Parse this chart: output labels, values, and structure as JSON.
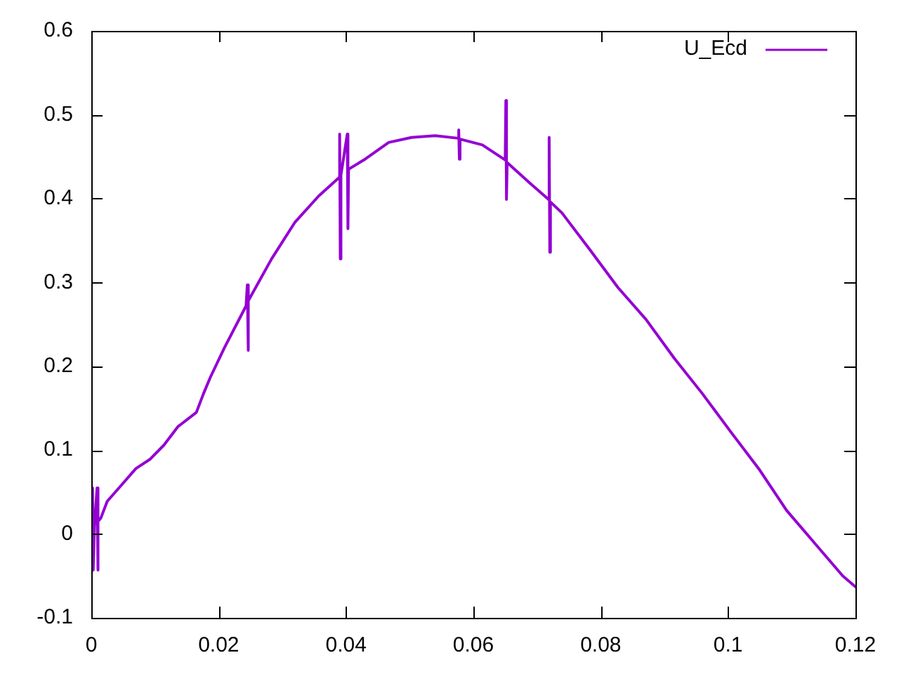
{
  "chart_data": {
    "type": "line",
    "x": [
      0,
      0.0002,
      0.0003,
      0.0005,
      0.0009,
      0.001,
      0.0011,
      0.0015,
      0.0025,
      0.0047,
      0.007,
      0.0092,
      0.0114,
      0.0136,
      0.0165,
      0.0176,
      0.0187,
      0.0209,
      0.0243,
      0.0245,
      0.0246,
      0.0247,
      0.0283,
      0.032,
      0.0357,
      0.0389,
      0.039,
      0.0391,
      0.0392,
      0.0402,
      0.0403,
      0.0404,
      0.043,
      0.0467,
      0.0503,
      0.054,
      0.0576,
      0.0577,
      0.0578,
      0.0579,
      0.0614,
      0.065,
      0.0651,
      0.0652,
      0.0653,
      0.0688,
      0.0718,
      0.0719,
      0.072,
      0.0721,
      0.0739,
      0.0783,
      0.0827,
      0.0871,
      0.0915,
      0.096,
      0.1004,
      0.1048,
      0.1092,
      0.1136,
      0.118,
      0.12
    ],
    "series": [
      {
        "name": "U_Ecd",
        "color": "#9400d3",
        "values": [
          0,
          0.055,
          -0.043,
          0.01,
          0.055,
          -0.043,
          0.015,
          0.019,
          0.039,
          0.058,
          0.078,
          0.089,
          0.106,
          0.128,
          0.145,
          0.167,
          0.187,
          0.222,
          0.272,
          0.297,
          0.219,
          0.278,
          0.328,
          0.372,
          0.403,
          0.425,
          0.477,
          0.328,
          0.428,
          0.477,
          0.364,
          0.435,
          0.447,
          0.467,
          0.473,
          0.475,
          0.472,
          0.482,
          0.447,
          0.471,
          0.464,
          0.446,
          0.517,
          0.399,
          0.443,
          0.419,
          0.399,
          0.473,
          0.336,
          0.396,
          0.383,
          0.339,
          0.294,
          0.256,
          0.21,
          0.167,
          0.122,
          0.078,
          0.028,
          -0.011,
          -0.05,
          -0.063
        ]
      }
    ],
    "xlim": [
      0,
      0.12
    ],
    "xticks": [
      0,
      0.02,
      0.04,
      0.06,
      0.08,
      0.1,
      0.12
    ],
    "ylim": [
      -0.1,
      0.6
    ],
    "yticks": [
      -0.1,
      0,
      0.1,
      0.2,
      0.3,
      0.4,
      0.5,
      0.6
    ],
    "legend": "top right"
  }
}
